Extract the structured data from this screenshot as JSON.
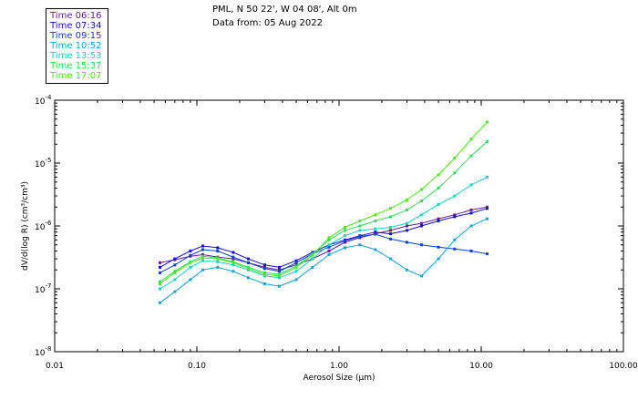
{
  "header": {
    "location": "PML, N 50 22', W 04 08', Alt 0m",
    "date_line": "Data from: 05 Aug 2022"
  },
  "legend": [
    {
      "label": "Time 06:16",
      "color": "#6a1b9a"
    },
    {
      "label": "Time 07:34",
      "color": "#1a0dd4"
    },
    {
      "label": "Time 09:15",
      "color": "#0a3fe6"
    },
    {
      "label": "Time 10:52",
      "color": "#12a5d6"
    },
    {
      "label": "Time 13:53",
      "color": "#14d6c4"
    },
    {
      "label": "Time 15:37",
      "color": "#2fe05a"
    },
    {
      "label": "Time 17:07",
      "color": "#4ee81e"
    }
  ],
  "chart_data": {
    "type": "line",
    "title": "PML, N 50 22', W 04 08', Alt 0m",
    "xlabel": "Aerosol Size (µm)",
    "ylabel": "dV/d(log R) (cm³/cm³)",
    "x_scale": "log",
    "y_scale": "log",
    "xlim": [
      0.01,
      100
    ],
    "ylim": [
      1e-08,
      0.0001
    ],
    "x_ticks": [
      {
        "value": 0.01,
        "label": "0.01"
      },
      {
        "value": 0.1,
        "label": "0.10"
      },
      {
        "value": 1,
        "label": "1.00"
      },
      {
        "value": 10,
        "label": "10.00"
      },
      {
        "value": 100,
        "label": "100.00"
      }
    ],
    "y_ticks": [
      {
        "value": 1e-08,
        "base": "10",
        "exp": "-8"
      },
      {
        "value": 1e-07,
        "base": "10",
        "exp": "-7"
      },
      {
        "value": 1e-06,
        "base": "10",
        "exp": "-6"
      },
      {
        "value": 1e-05,
        "base": "10",
        "exp": "-5"
      },
      {
        "value": 0.0001,
        "base": "10",
        "exp": "-4"
      }
    ],
    "x": [
      0.055,
      0.07,
      0.09,
      0.11,
      0.14,
      0.18,
      0.23,
      0.3,
      0.38,
      0.5,
      0.65,
      0.85,
      1.1,
      1.4,
      1.8,
      2.3,
      3.0,
      3.8,
      5.0,
      6.5,
      8.5,
      11.0
    ],
    "series": [
      {
        "name": "Time 06:16",
        "color": "#6a1b9a",
        "values": [
          2.6e-07,
          2.9e-07,
          3.3e-07,
          3.5e-07,
          3.2e-07,
          3e-07,
          2.6e-07,
          2.2e-07,
          2e-07,
          2.4e-07,
          3e-07,
          4e-07,
          5.5e-07,
          6.5e-07,
          7.5e-07,
          8.5e-07,
          1e-06,
          1.1e-06,
          1.3e-06,
          1.5e-06,
          1.8e-06,
          2e-06
        ]
      },
      {
        "name": "Time 07:34",
        "color": "#1a0dd4",
        "values": [
          2.2e-07,
          3e-07,
          4e-07,
          4.8e-07,
          4.5e-07,
          3.8e-07,
          3e-07,
          2.4e-07,
          2.2e-07,
          2.8e-07,
          3.8e-07,
          5e-07,
          6e-07,
          7e-07,
          8e-07,
          7.5e-07,
          8.5e-07,
          1e-06,
          1.2e-06,
          1.4e-06,
          1.6e-06,
          1.9e-06
        ]
      },
      {
        "name": "Time 09:15",
        "color": "#0a3fe6",
        "values": [
          1.8e-07,
          2.4e-07,
          3.4e-07,
          4.2e-07,
          4e-07,
          3.2e-07,
          2.6e-07,
          2.1e-07,
          1.9e-07,
          2.6e-07,
          3.6e-07,
          4.6e-07,
          5.8e-07,
          6.8e-07,
          7.4e-07,
          6.2e-07,
          5.5e-07,
          5e-07,
          4.6e-07,
          4.3e-07,
          4e-07,
          3.6e-07
        ]
      },
      {
        "name": "Time 10:52",
        "color": "#12a5d6",
        "values": [
          6e-08,
          9e-08,
          1.4e-07,
          2e-07,
          2.2e-07,
          1.9e-07,
          1.5e-07,
          1.2e-07,
          1.1e-07,
          1.4e-07,
          2.2e-07,
          3.5e-07,
          4.5e-07,
          5e-07,
          4.2e-07,
          3e-07,
          2e-07,
          1.6e-07,
          3e-07,
          6e-07,
          1e-06,
          1.3e-06
        ]
      },
      {
        "name": "Time 13:53",
        "color": "#14d6c4",
        "values": [
          1e-07,
          1.4e-07,
          2.2e-07,
          2.8e-07,
          2.7e-07,
          2.4e-07,
          2e-07,
          1.6e-07,
          1.5e-07,
          1.9e-07,
          3e-07,
          5e-07,
          7e-07,
          8.5e-07,
          9e-07,
          9.5e-07,
          1.1e-06,
          1.5e-06,
          2.2e-06,
          3e-06,
          4.5e-06,
          6e-06
        ]
      },
      {
        "name": "Time 15:37",
        "color": "#2fe05a",
        "values": [
          1.3e-07,
          1.9e-07,
          2.7e-07,
          3.3e-07,
          3.1e-07,
          2.7e-07,
          2.2e-07,
          1.8e-07,
          1.7e-07,
          2.3e-07,
          3.6e-07,
          6e-07,
          8.5e-07,
          1e-06,
          1.2e-06,
          1.4e-06,
          1.8e-06,
          2.5e-06,
          4e-06,
          7e-06,
          1.3e-05,
          2.2e-05
        ]
      },
      {
        "name": "Time 17:07",
        "color": "#4ee81e",
        "values": [
          1.2e-07,
          1.8e-07,
          2.6e-07,
          3.1e-07,
          3e-07,
          2.6e-07,
          2.1e-07,
          1.7e-07,
          1.6e-07,
          2.2e-07,
          3.4e-07,
          6.5e-07,
          9.5e-07,
          1.2e-06,
          1.5e-06,
          1.9e-06,
          2.6e-06,
          3.8e-06,
          6.5e-06,
          1.2e-05,
          2.4e-05,
          4.5e-05
        ]
      }
    ]
  }
}
